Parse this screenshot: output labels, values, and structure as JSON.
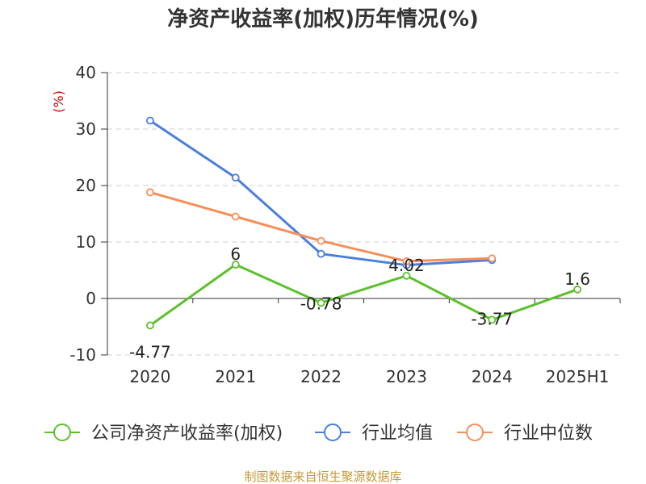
{
  "chart_data": {
    "type": "line",
    "title": "净资产收益率(加权)历年情况(%)",
    "ylabel": "(%)",
    "categories": [
      "2020",
      "2021",
      "2022",
      "2023",
      "2024",
      "2025H1"
    ],
    "ylim": [
      -10,
      40
    ],
    "yticks": [
      40,
      30,
      20,
      10,
      0,
      -10
    ],
    "grid": true,
    "legend_position": "bottom",
    "series": [
      {
        "name": "公司净资产收益率(加权)",
        "color": "#5bc12a",
        "values": [
          -4.77,
          6,
          -0.78,
          4.02,
          -3.77,
          1.6
        ],
        "labels": [
          "-4.77",
          "6",
          "-0.78",
          "4.02",
          "-3.77",
          "1.6"
        ]
      },
      {
        "name": "行业均值",
        "color": "#4a7fdc",
        "values": [
          31.5,
          21.4,
          7.9,
          5.9,
          6.8,
          null
        ]
      },
      {
        "name": "行业中位数",
        "color": "#f58f5a",
        "values": [
          18.8,
          14.5,
          10.2,
          6.6,
          7.1,
          null
        ]
      }
    ]
  },
  "source": "制图数据来自恒生聚源数据库"
}
